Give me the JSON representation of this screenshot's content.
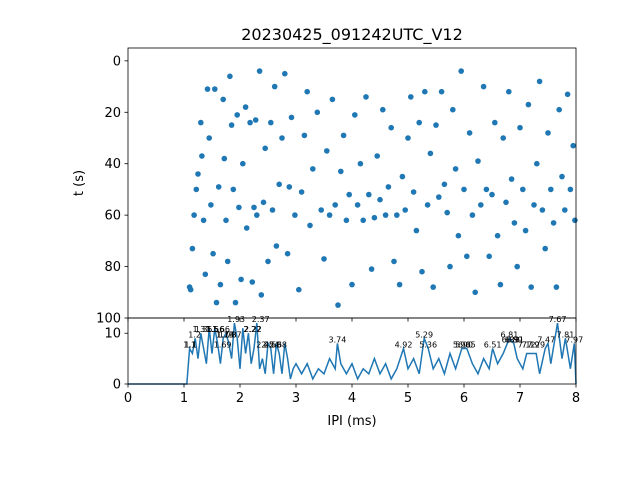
{
  "colors": {
    "series": "#1f77b4",
    "axes": "#000000",
    "background": "#ffffff"
  },
  "chart_data": [
    {
      "type": "scatter",
      "title": "20230425_091242UTC_V12",
      "xlabel": "",
      "ylabel": "t (s)",
      "xlim": [
        0,
        8
      ],
      "ylim": [
        100,
        -5
      ],
      "y_inverted": true,
      "y_ticks": [
        "0",
        "20",
        "40",
        "60",
        "80",
        "100"
      ],
      "x_tick_labels_shown": false,
      "grid": false,
      "marker": "filled circle",
      "points": [
        [
          1.1,
          88
        ],
        [
          1.12,
          89
        ],
        [
          1.15,
          73
        ],
        [
          1.18,
          60
        ],
        [
          1.22,
          50
        ],
        [
          1.25,
          44
        ],
        [
          1.3,
          24
        ],
        [
          1.32,
          37
        ],
        [
          1.35,
          62
        ],
        [
          1.38,
          83
        ],
        [
          1.42,
          11
        ],
        [
          1.45,
          30
        ],
        [
          1.48,
          56
        ],
        [
          1.52,
          75
        ],
        [
          1.55,
          11
        ],
        [
          1.58,
          94
        ],
        [
          1.62,
          49
        ],
        [
          1.65,
          87
        ],
        [
          1.7,
          15
        ],
        [
          1.72,
          38
        ],
        [
          1.75,
          62
        ],
        [
          1.78,
          78
        ],
        [
          1.82,
          6
        ],
        [
          1.85,
          25
        ],
        [
          1.88,
          50
        ],
        [
          1.92,
          94
        ],
        [
          1.95,
          21
        ],
        [
          1.98,
          57
        ],
        [
          2.02,
          85
        ],
        [
          2.05,
          40
        ],
        [
          2.1,
          18
        ],
        [
          2.12,
          65
        ],
        [
          2.18,
          24
        ],
        [
          2.22,
          86
        ],
        [
          2.25,
          57
        ],
        [
          2.28,
          23
        ],
        [
          2.3,
          60
        ],
        [
          2.35,
          4
        ],
        [
          2.38,
          91
        ],
        [
          2.42,
          55
        ],
        [
          2.45,
          34
        ],
        [
          2.5,
          78
        ],
        [
          2.55,
          24
        ],
        [
          2.58,
          58
        ],
        [
          2.62,
          10
        ],
        [
          2.65,
          72
        ],
        [
          2.7,
          48
        ],
        [
          2.75,
          30
        ],
        [
          2.8,
          5
        ],
        [
          2.85,
          75
        ],
        [
          2.88,
          49
        ],
        [
          2.92,
          22
        ],
        [
          2.98,
          60
        ],
        [
          3.05,
          89
        ],
        [
          3.1,
          51
        ],
        [
          3.15,
          29
        ],
        [
          3.2,
          12
        ],
        [
          3.25,
          64
        ],
        [
          3.3,
          42
        ],
        [
          3.38,
          20
        ],
        [
          3.45,
          58
        ],
        [
          3.5,
          77
        ],
        [
          3.55,
          35
        ],
        [
          3.6,
          60
        ],
        [
          3.65,
          15
        ],
        [
          3.7,
          56
        ],
        [
          3.75,
          95
        ],
        [
          3.8,
          43
        ],
        [
          3.85,
          29
        ],
        [
          3.9,
          62
        ],
        [
          3.95,
          52
        ],
        [
          4.0,
          87
        ],
        [
          4.05,
          21
        ],
        [
          4.1,
          56
        ],
        [
          4.15,
          40
        ],
        [
          4.2,
          62
        ],
        [
          4.25,
          14
        ],
        [
          4.3,
          52
        ],
        [
          4.35,
          81
        ],
        [
          4.4,
          61
        ],
        [
          4.45,
          37
        ],
        [
          4.5,
          54
        ],
        [
          4.55,
          19
        ],
        [
          4.6,
          60
        ],
        [
          4.65,
          49
        ],
        [
          4.7,
          26
        ],
        [
          4.75,
          78
        ],
        [
          4.8,
          60
        ],
        [
          4.85,
          87
        ],
        [
          4.9,
          45
        ],
        [
          4.95,
          58
        ],
        [
          5.0,
          30
        ],
        [
          5.05,
          14
        ],
        [
          5.1,
          51
        ],
        [
          5.15,
          66
        ],
        [
          5.2,
          24
        ],
        [
          5.25,
          82
        ],
        [
          5.3,
          12
        ],
        [
          5.35,
          56
        ],
        [
          5.4,
          36
        ],
        [
          5.45,
          88
        ],
        [
          5.5,
          25
        ],
        [
          5.55,
          53
        ],
        [
          5.6,
          12
        ],
        [
          5.65,
          48
        ],
        [
          5.7,
          59
        ],
        [
          5.75,
          80
        ],
        [
          5.8,
          19
        ],
        [
          5.85,
          42
        ],
        [
          5.9,
          68
        ],
        [
          5.95,
          4
        ],
        [
          6.0,
          50
        ],
        [
          6.05,
          76
        ],
        [
          6.1,
          28
        ],
        [
          6.15,
          60
        ],
        [
          6.2,
          90
        ],
        [
          6.25,
          39
        ],
        [
          6.3,
          56
        ],
        [
          6.35,
          10
        ],
        [
          6.4,
          50
        ],
        [
          6.45,
          76
        ],
        [
          6.5,
          52
        ],
        [
          6.55,
          24
        ],
        [
          6.6,
          68
        ],
        [
          6.65,
          87
        ],
        [
          6.7,
          30
        ],
        [
          6.75,
          55
        ],
        [
          6.8,
          12
        ],
        [
          6.85,
          46
        ],
        [
          6.9,
          63
        ],
        [
          6.95,
          80
        ],
        [
          7.0,
          26
        ],
        [
          7.05,
          50
        ],
        [
          7.1,
          66
        ],
        [
          7.15,
          17
        ],
        [
          7.2,
          88
        ],
        [
          7.25,
          56
        ],
        [
          7.3,
          40
        ],
        [
          7.35,
          8
        ],
        [
          7.4,
          58
        ],
        [
          7.45,
          73
        ],
        [
          7.5,
          28
        ],
        [
          7.55,
          50
        ],
        [
          7.6,
          63
        ],
        [
          7.65,
          88
        ],
        [
          7.7,
          19
        ],
        [
          7.75,
          45
        ],
        [
          7.8,
          58
        ],
        [
          7.85,
          13
        ],
        [
          7.9,
          50
        ],
        [
          7.95,
          33
        ],
        [
          7.98,
          62
        ]
      ]
    },
    {
      "type": "line",
      "title": "",
      "xlabel": "IPI (ms)",
      "ylabel": "",
      "xlim": [
        0,
        8
      ],
      "ylim": [
        0,
        13
      ],
      "x_ticks": [
        "0",
        "1",
        "2",
        "3",
        "4",
        "5",
        "6",
        "7",
        "8"
      ],
      "y_ticks": [
        "0",
        "10"
      ],
      "grid": false,
      "x": [
        0.0,
        1.05,
        1.1,
        1.15,
        1.2,
        1.25,
        1.3,
        1.35,
        1.4,
        1.45,
        1.5,
        1.55,
        1.6,
        1.65,
        1.7,
        1.75,
        1.8,
        1.85,
        1.9,
        1.95,
        2.0,
        2.05,
        2.1,
        2.15,
        2.2,
        2.25,
        2.3,
        2.35,
        2.4,
        2.45,
        2.5,
        2.55,
        2.6,
        2.65,
        2.7,
        2.75,
        2.8,
        2.85,
        2.9,
        2.95,
        3.0,
        3.1,
        3.2,
        3.3,
        3.4,
        3.5,
        3.6,
        3.7,
        3.74,
        3.8,
        3.9,
        4.0,
        4.1,
        4.2,
        4.3,
        4.4,
        4.5,
        4.6,
        4.7,
        4.8,
        4.92,
        5.0,
        5.1,
        5.2,
        5.29,
        5.36,
        5.45,
        5.55,
        5.65,
        5.75,
        5.85,
        5.96,
        6.05,
        6.15,
        6.25,
        6.35,
        6.45,
        6.51,
        6.6,
        6.7,
        6.81,
        6.89,
        6.95,
        7.05,
        7.12,
        7.19,
        7.29,
        7.35,
        7.45,
        7.5,
        7.55,
        7.67,
        7.75,
        7.81,
        7.9,
        7.97,
        8.0
      ],
      "y": [
        0,
        0,
        7,
        6,
        9,
        5,
        10,
        7,
        4,
        11,
        6,
        11,
        8,
        4,
        9,
        10,
        8,
        5,
        12,
        9,
        3,
        11,
        6,
        10,
        4,
        7,
        12,
        3,
        5,
        2,
        8,
        7,
        2,
        8,
        6,
        2,
        8,
        5,
        1,
        3,
        4,
        2,
        4,
        1,
        3,
        2,
        5,
        3,
        8,
        4,
        2,
        4,
        1,
        3,
        2,
        5,
        2,
        4,
        1,
        3,
        7,
        3,
        5,
        2,
        9,
        7,
        3,
        5,
        2,
        6,
        3,
        7,
        7,
        4,
        2,
        5,
        3,
        7,
        4,
        6,
        9,
        8,
        5,
        3,
        6,
        6,
        6,
        2,
        7,
        8,
        4,
        12,
        5,
        9,
        3,
        8,
        0
      ],
      "annotations": [
        {
          "x": 1.1,
          "y": 7,
          "text": "1.1"
        },
        {
          "x": 1.12,
          "y": 7,
          "text": "1.1"
        },
        {
          "x": 1.19,
          "y": 9,
          "text": "1.2"
        },
        {
          "x": 1.31,
          "y": 10,
          "text": "1.31"
        },
        {
          "x": 1.35,
          "y": 10,
          "text": "1.35"
        },
        {
          "x": 1.5,
          "y": 10,
          "text": "1.5"
        },
        {
          "x": 1.56,
          "y": 10,
          "text": "1.56"
        },
        {
          "x": 1.66,
          "y": 10,
          "text": "1.66"
        },
        {
          "x": 1.69,
          "y": 7,
          "text": "1.69"
        },
        {
          "x": 1.73,
          "y": 9,
          "text": "1.73"
        },
        {
          "x": 1.74,
          "y": 9,
          "text": "1.74"
        },
        {
          "x": 1.78,
          "y": 9,
          "text": "1.78"
        },
        {
          "x": 1.87,
          "y": 9,
          "text": "1.87"
        },
        {
          "x": 1.93,
          "y": 12,
          "text": "1.93"
        },
        {
          "x": 2.22,
          "y": 10,
          "text": "2.22"
        },
        {
          "x": 2.23,
          "y": 10,
          "text": "2.22"
        },
        {
          "x": 2.37,
          "y": 12,
          "text": "2.37"
        },
        {
          "x": 2.45,
          "y": 7,
          "text": "2.45"
        },
        {
          "x": 2.54,
          "y": 7,
          "text": "2.54"
        },
        {
          "x": 2.58,
          "y": 7,
          "text": "2.58"
        },
        {
          "x": 2.68,
          "y": 7,
          "text": "2.68"
        },
        {
          "x": 3.74,
          "y": 8,
          "text": "3.74"
        },
        {
          "x": 4.92,
          "y": 7,
          "text": "4.92"
        },
        {
          "x": 5.29,
          "y": 9,
          "text": "5.29"
        },
        {
          "x": 5.36,
          "y": 7,
          "text": "5.36"
        },
        {
          "x": 5.96,
          "y": 7,
          "text": "5.96"
        },
        {
          "x": 6.0,
          "y": 7,
          "text": "5.90"
        },
        {
          "x": 6.05,
          "y": 7,
          "text": "6.05"
        },
        {
          "x": 6.51,
          "y": 7,
          "text": "6.51"
        },
        {
          "x": 6.81,
          "y": 9,
          "text": "6.81"
        },
        {
          "x": 6.83,
          "y": 8,
          "text": "6.83"
        },
        {
          "x": 6.89,
          "y": 8,
          "text": "6.89"
        },
        {
          "x": 6.91,
          "y": 8,
          "text": "6.91"
        },
        {
          "x": 7.12,
          "y": 7,
          "text": "7.12"
        },
        {
          "x": 7.19,
          "y": 7,
          "text": "7.19"
        },
        {
          "x": 7.29,
          "y": 7,
          "text": "7.29"
        },
        {
          "x": 7.47,
          "y": 8,
          "text": "7.47"
        },
        {
          "x": 7.67,
          "y": 12,
          "text": "7.67"
        },
        {
          "x": 7.81,
          "y": 9,
          "text": "7.81"
        },
        {
          "x": 7.97,
          "y": 8,
          "text": "7.97"
        }
      ]
    }
  ]
}
